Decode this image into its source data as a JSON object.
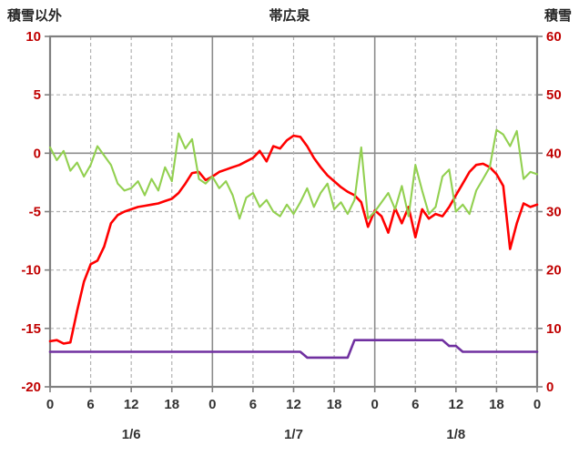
{
  "chart_data": {
    "type": "line",
    "title": "帯広泉",
    "x_hours_total": 72,
    "x_tick_interval": 6,
    "x_tick_labels": [
      "0",
      "6",
      "12",
      "18",
      "0",
      "6",
      "12",
      "18",
      "0",
      "6",
      "12",
      "18",
      "0"
    ],
    "date_labels": [
      {
        "label": "1/6",
        "hour": 12
      },
      {
        "label": "1/7",
        "hour": 36
      },
      {
        "label": "1/8",
        "hour": 60
      }
    ],
    "left_axis": {
      "title": "積雪以外",
      "min": -20,
      "max": 10,
      "tick_step": 5,
      "tick_labels": [
        "10",
        "5",
        "0",
        "-5",
        "-10",
        "-15",
        "-20"
      ]
    },
    "right_axis": {
      "title": "積雪",
      "min": 0,
      "max": 60,
      "tick_step": 10,
      "tick_labels": [
        "60",
        "50",
        "40",
        "30",
        "20",
        "10",
        "0"
      ]
    },
    "grid": {
      "dashed_color": "#b3b3b3",
      "solid_color": "#8c8c8c",
      "frame_color": "#7f7f7f"
    },
    "label_colors": {
      "y_axis": "#c00000",
      "x_axis": "#333333"
    },
    "series": [
      {
        "name": "temperature-red",
        "axis": "left",
        "color": "#ff0000",
        "width": 2.6,
        "values": [
          -16.1,
          -16.0,
          -16.3,
          -16.2,
          -13.5,
          -11.0,
          -9.5,
          -9.2,
          -8.0,
          -6.0,
          -5.3,
          -5.0,
          -4.8,
          -4.6,
          -4.5,
          -4.4,
          -4.3,
          -4.1,
          -3.9,
          -3.4,
          -2.6,
          -1.7,
          -1.6,
          -2.3,
          -2.0,
          -1.6,
          -1.4,
          -1.2,
          -1.0,
          -0.7,
          -0.4,
          0.2,
          -0.7,
          0.6,
          0.4,
          1.1,
          1.5,
          1.4,
          0.6,
          -0.4,
          -1.2,
          -1.9,
          -2.4,
          -2.9,
          -3.3,
          -3.6,
          -4.2,
          -6.3,
          -4.9,
          -5.4,
          -6.8,
          -4.7,
          -6.0,
          -4.6,
          -7.2,
          -4.8,
          -5.6,
          -5.2,
          -5.4,
          -4.6,
          -3.6,
          -2.6,
          -1.6,
          -1.0,
          -0.9,
          -1.2,
          -1.8,
          -2.8,
          -8.2,
          -6.0,
          -4.3,
          -4.6,
          -4.4
        ]
      },
      {
        "name": "green-series",
        "axis": "left",
        "color": "#92d050",
        "width": 2.1,
        "values": [
          0.5,
          -0.6,
          0.2,
          -1.5,
          -0.8,
          -2.0,
          -1.0,
          0.6,
          -0.2,
          -1.0,
          -2.6,
          -3.2,
          -3.0,
          -2.4,
          -3.6,
          -2.2,
          -3.2,
          -1.2,
          -2.4,
          1.7,
          0.4,
          1.2,
          -2.2,
          -2.6,
          -2.0,
          -3.0,
          -2.4,
          -3.6,
          -5.6,
          -3.8,
          -3.4,
          -4.6,
          -4.0,
          -5.0,
          -5.4,
          -4.4,
          -5.2,
          -4.2,
          -3.0,
          -4.6,
          -3.4,
          -2.6,
          -4.8,
          -4.2,
          -5.2,
          -4.0,
          0.5,
          -5.6,
          -5.0,
          -4.2,
          -3.4,
          -4.8,
          -2.8,
          -5.4,
          -1.0,
          -3.2,
          -5.2,
          -4.6,
          -2.0,
          -1.4,
          -5.0,
          -4.4,
          -5.2,
          -3.2,
          -2.2,
          -1.2,
          2.0,
          1.6,
          0.6,
          1.9,
          -2.2,
          -1.6,
          -1.8
        ]
      },
      {
        "name": "snow-depth-purple",
        "axis": "right",
        "color": "#7030a0",
        "width": 2.6,
        "values": [
          6,
          6,
          6,
          6,
          6,
          6,
          6,
          6,
          6,
          6,
          6,
          6,
          6,
          6,
          6,
          6,
          6,
          6,
          6,
          6,
          6,
          6,
          6,
          6,
          6,
          6,
          6,
          6,
          6,
          6,
          6,
          6,
          6,
          6,
          6,
          6,
          6,
          6,
          5,
          5,
          5,
          5,
          5,
          5,
          5,
          8,
          8,
          8,
          8,
          8,
          8,
          8,
          8,
          8,
          8,
          8,
          8,
          8,
          8,
          7,
          7,
          6,
          6,
          6,
          6,
          6,
          6,
          6,
          6,
          6,
          6,
          6,
          6
        ]
      }
    ]
  }
}
